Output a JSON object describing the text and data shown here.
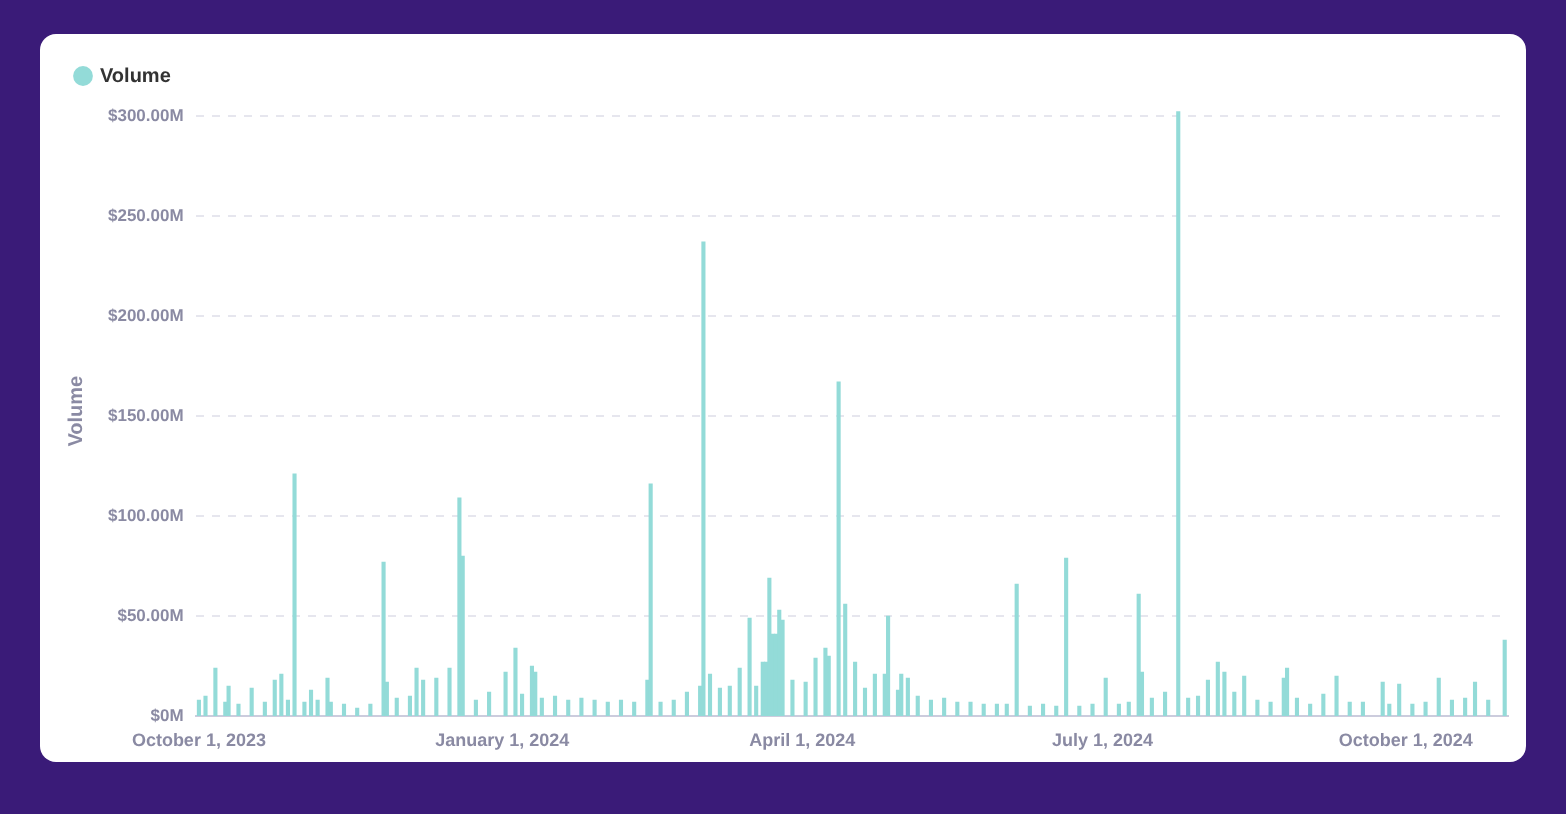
{
  "chart_data": {
    "type": "bar",
    "ylabel": "Volume",
    "legend": "top left",
    "grid": "y",
    "xlim": [
      "2023-09-30",
      "2024-11-01"
    ],
    "xticks": [
      {
        "value": "2023-10-01",
        "label": "October 1, 2023"
      },
      {
        "value": "2024-01-01",
        "label": "January 1, 2024"
      },
      {
        "value": "2024-04-01",
        "label": "April 1, 2024"
      },
      {
        "value": "2024-07-01",
        "label": "July 1, 2024"
      },
      {
        "value": "2024-10-01",
        "label": "October 1, 2024"
      }
    ],
    "ylim": [
      0,
      305
    ],
    "yticks": [
      {
        "value": 0,
        "label": "$0M"
      },
      {
        "value": 50,
        "label": "$50.00M"
      },
      {
        "value": 100,
        "label": "$100.00M"
      },
      {
        "value": 150,
        "label": "$150.00M"
      },
      {
        "value": 200,
        "label": "$200.00M"
      },
      {
        "value": 250,
        "label": "$250.00M"
      },
      {
        "value": 300,
        "label": "$300.00M"
      }
    ],
    "series": [
      {
        "name": "Volume",
        "color": "#93dbd8",
        "x": [
          "2023-10-01",
          "2023-10-03",
          "2023-10-06",
          "2023-10-09",
          "2023-10-10",
          "2023-10-13",
          "2023-10-17",
          "2023-10-21",
          "2023-10-24",
          "2023-10-26",
          "2023-10-28",
          "2023-10-30",
          "2023-11-02",
          "2023-11-04",
          "2023-11-06",
          "2023-11-09",
          "2023-11-10",
          "2023-11-14",
          "2023-11-18",
          "2023-11-22",
          "2023-11-26",
          "2023-11-27",
          "2023-11-30",
          "2023-12-04",
          "2023-12-06",
          "2023-12-08",
          "2023-12-12",
          "2023-12-16",
          "2023-12-19",
          "2023-12-20",
          "2023-12-24",
          "2023-12-28",
          "2024-01-02",
          "2024-01-05",
          "2024-01-07",
          "2024-01-10",
          "2024-01-11",
          "2024-01-13",
          "2024-01-17",
          "2024-01-21",
          "2024-01-25",
          "2024-01-29",
          "2024-02-02",
          "2024-02-06",
          "2024-02-10",
          "2024-02-14",
          "2024-02-15",
          "2024-02-18",
          "2024-02-22",
          "2024-02-26",
          "2024-03-01",
          "2024-03-02",
          "2024-03-04",
          "2024-03-07",
          "2024-03-10",
          "2024-03-13",
          "2024-03-16",
          "2024-03-18",
          "2024-03-20",
          "2024-03-21",
          "2024-03-22",
          "2024-03-23",
          "2024-03-24",
          "2024-03-25",
          "2024-03-26",
          "2024-03-29",
          "2024-04-02",
          "2024-04-05",
          "2024-04-08",
          "2024-04-09",
          "2024-04-12",
          "2024-04-14",
          "2024-04-17",
          "2024-04-20",
          "2024-04-23",
          "2024-04-26",
          "2024-04-27",
          "2024-04-30",
          "2024-05-01",
          "2024-05-03",
          "2024-05-06",
          "2024-05-10",
          "2024-05-14",
          "2024-05-18",
          "2024-05-22",
          "2024-05-26",
          "2024-05-30",
          "2024-06-02",
          "2024-06-05",
          "2024-06-09",
          "2024-06-13",
          "2024-06-17",
          "2024-06-20",
          "2024-06-24",
          "2024-06-28",
          "2024-07-02",
          "2024-07-06",
          "2024-07-09",
          "2024-07-12",
          "2024-07-13",
          "2024-07-16",
          "2024-07-20",
          "2024-07-24",
          "2024-07-27",
          "2024-07-30",
          "2024-08-02",
          "2024-08-05",
          "2024-08-07",
          "2024-08-10",
          "2024-08-13",
          "2024-08-17",
          "2024-08-21",
          "2024-08-25",
          "2024-08-26",
          "2024-08-29",
          "2024-09-02",
          "2024-09-06",
          "2024-09-10",
          "2024-09-14",
          "2024-09-18",
          "2024-09-24",
          "2024-09-26",
          "2024-09-29",
          "2024-10-03",
          "2024-10-07",
          "2024-10-11",
          "2024-10-15",
          "2024-10-19",
          "2024-10-22",
          "2024-10-26",
          "2024-10-31"
        ],
        "values": [
          8,
          10,
          24,
          7,
          15,
          6,
          14,
          7,
          18,
          21,
          8,
          121,
          7,
          13,
          8,
          19,
          7,
          6,
          4,
          6,
          77,
          17,
          9,
          10,
          24,
          18,
          19,
          24,
          109,
          80,
          8,
          12,
          22,
          34,
          11,
          25,
          22,
          9,
          10,
          8,
          9,
          8,
          7,
          8,
          7,
          18,
          116,
          7,
          8,
          12,
          15,
          237,
          21,
          14,
          15,
          24,
          49,
          15,
          27,
          27,
          69,
          41,
          41,
          53,
          48,
          18,
          17,
          29,
          34,
          30,
          167,
          56,
          27,
          14,
          21,
          21,
          50,
          13,
          21,
          19,
          10,
          8,
          9,
          7,
          7,
          6,
          6,
          6,
          66,
          5,
          6,
          5,
          79,
          5,
          6,
          19,
          6,
          7,
          61,
          22,
          9,
          12,
          302,
          9,
          10,
          18,
          27,
          22,
          12,
          20,
          8,
          7,
          19,
          24,
          9,
          6,
          11,
          20,
          7,
          7,
          17,
          6,
          16,
          6,
          7,
          19,
          8,
          9,
          17,
          8,
          38
        ]
      }
    ]
  }
}
